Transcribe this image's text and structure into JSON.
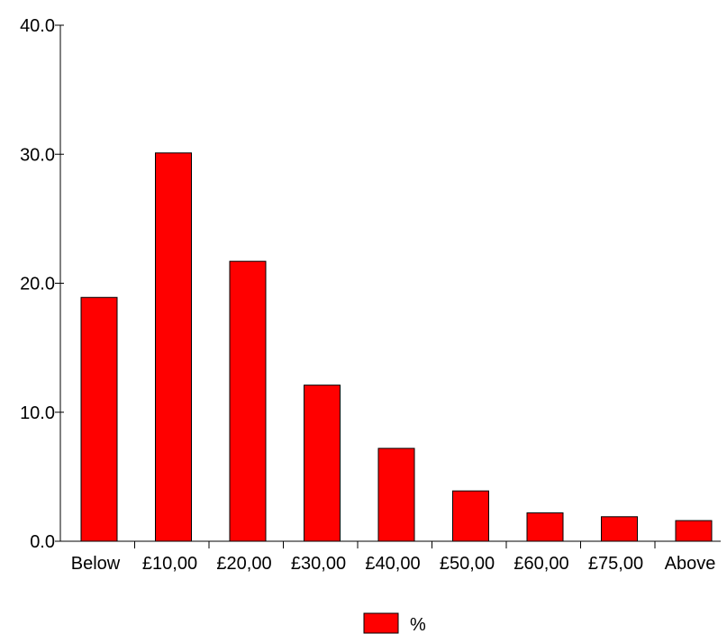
{
  "chart_data": {
    "type": "bar",
    "categories": [
      "Below",
      "£10,00",
      "£20,00",
      "£30,00",
      "£40,00",
      "£50,00",
      "£60,00",
      "£75,00",
      "Above"
    ],
    "series": [
      {
        "name": "%",
        "values": [
          18.9,
          30.1,
          21.7,
          12.1,
          7.2,
          3.9,
          2.2,
          1.9,
          1.6
        ],
        "color": "#ff0000"
      }
    ],
    "y_ticks": [
      "0.0",
      "10.0",
      "20.0",
      "30.0",
      "40.0"
    ],
    "ylim": [
      0,
      40
    ],
    "grid": false,
    "legend_position": "bottom-center"
  }
}
